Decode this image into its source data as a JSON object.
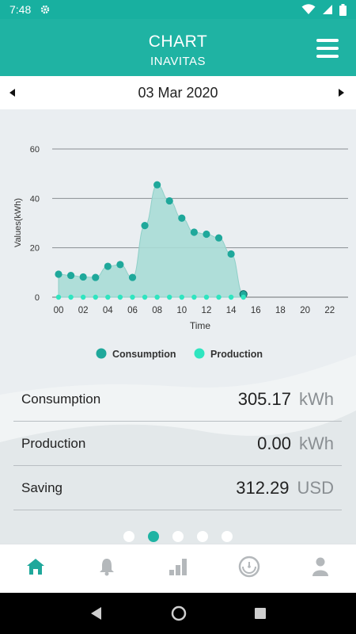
{
  "status_bar": {
    "time": "7:48"
  },
  "header": {
    "title": "CHART",
    "subtitle": "INAVITAS"
  },
  "date_bar": {
    "date": "03 Mar 2020"
  },
  "chart_data": {
    "type": "area",
    "xlabel": "Time",
    "ylabel": "Values(kWh)",
    "ylim": [
      0,
      60
    ],
    "yticks": [
      "0",
      "20",
      "40",
      "60"
    ],
    "xticks": [
      "00",
      "02",
      "04",
      "06",
      "08",
      "10",
      "12",
      "14",
      "16",
      "18",
      "20",
      "22"
    ],
    "x": [
      0,
      1,
      2,
      3,
      4,
      5,
      6,
      7,
      8,
      9,
      10,
      11,
      12,
      13,
      14,
      15
    ],
    "grid": true,
    "legend_position": "bottom",
    "series": [
      {
        "name": "Consumption",
        "color": "#1fa89b",
        "values": [
          9.3,
          8.8,
          8.2,
          8.0,
          12.5,
          13.2,
          8.0,
          29.0,
          45.5,
          39.0,
          32.0,
          26.3,
          25.5,
          24.0,
          17.5,
          1.2
        ]
      },
      {
        "name": "Production",
        "color": "#2fe5c0",
        "values": [
          0,
          0,
          0,
          0,
          0,
          0,
          0,
          0,
          0,
          0,
          0,
          0,
          0,
          0,
          0,
          0
        ]
      }
    ]
  },
  "summary": [
    {
      "label": "Consumption",
      "value": "305.17",
      "unit": "kWh"
    },
    {
      "label": "Production",
      "value": "0.00",
      "unit": "kWh"
    },
    {
      "label": "Saving",
      "value": "312.29",
      "unit": "USD"
    }
  ],
  "pager": {
    "count": 5,
    "active": 1
  },
  "colors": {
    "accent": "#1fb3a3",
    "nav_active": "#1fa89b",
    "nav_inactive": "#b4b8bb"
  },
  "bottom_nav": [
    {
      "icon": "home-icon",
      "active": true
    },
    {
      "icon": "bell-icon",
      "active": false
    },
    {
      "icon": "bar-chart-icon",
      "active": false
    },
    {
      "icon": "meter-icon",
      "active": false
    },
    {
      "icon": "user-icon",
      "active": false
    }
  ]
}
